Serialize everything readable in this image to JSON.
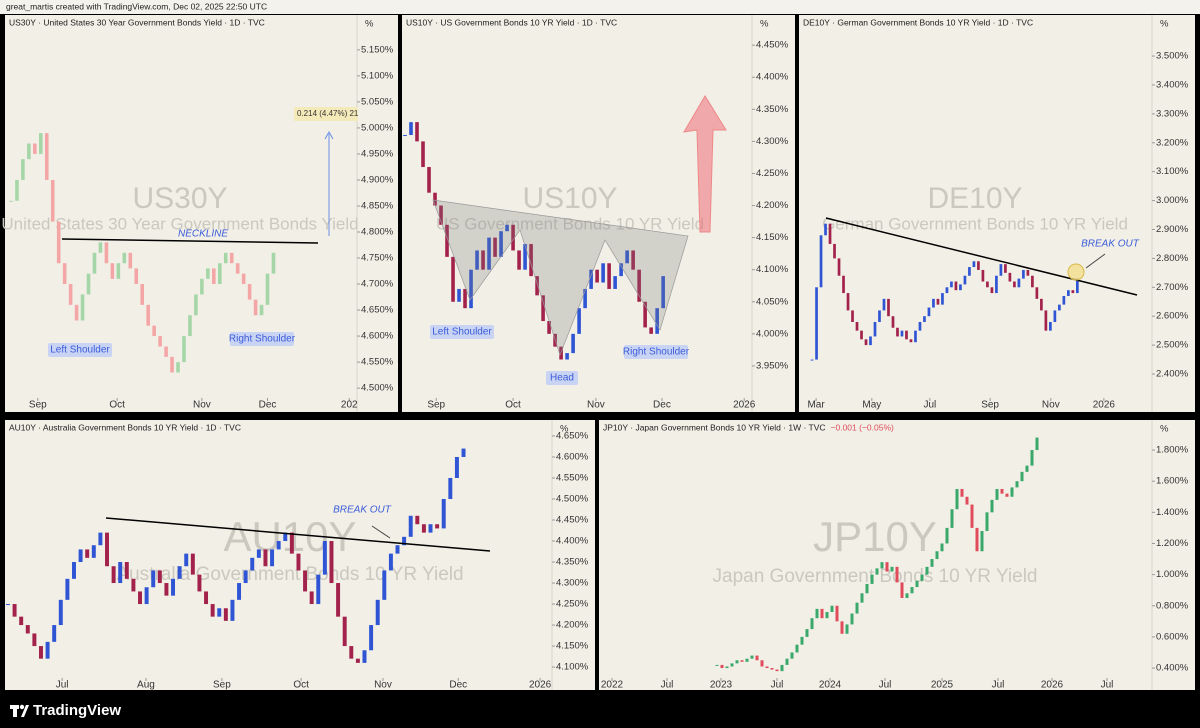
{
  "header": {
    "text": "great_martis created with TradingView.com, Dec 02, 2025 22:50 UTC"
  },
  "footer": {
    "brand": "TradingView"
  },
  "chart_data": [
    {
      "type": "candlestick",
      "title": "US30Y · United States 30 Year Government Bonds Yield · 1D · TVC",
      "symbol": "US30Y",
      "description": "United States 30 Year Government Bonds Yield",
      "unit": "%",
      "up_color": "#a5d6a7",
      "down_color": "#f4a6a6",
      "xlim": [
        -1,
        58
      ],
      "xticks": [
        {
          "value": 4.5,
          "label": "Sep"
        },
        {
          "value": 17.8,
          "label": "Oct"
        },
        {
          "value": 32,
          "label": "Nov"
        },
        {
          "value": 43,
          "label": "Dec"
        },
        {
          "value": 56.7,
          "label": "202"
        }
      ],
      "ylim": [
        4.481,
        5.217
      ],
      "yticks": [
        {
          "value": 5.15,
          "label": "5.150%"
        },
        {
          "value": 5.1,
          "label": "5.100%"
        },
        {
          "value": 5.05,
          "label": "5.050%"
        },
        {
          "value": 5.0,
          "label": "5.000%"
        },
        {
          "value": 4.95,
          "label": "4.950%"
        },
        {
          "value": 4.9,
          "label": "4.900%"
        },
        {
          "value": 4.85,
          "label": "4.850%"
        },
        {
          "value": 4.8,
          "label": "4.800%"
        },
        {
          "value": 4.75,
          "label": "4.750%"
        },
        {
          "value": 4.7,
          "label": "4.700%"
        },
        {
          "value": 4.65,
          "label": "4.650%"
        },
        {
          "value": 4.6,
          "label": "4.600%"
        },
        {
          "value": 4.55,
          "label": "4.550%"
        },
        {
          "value": 4.5,
          "label": "4.500%"
        }
      ],
      "values": [
        4.86,
        4.9,
        4.94,
        4.97,
        4.95,
        4.99,
        4.9,
        4.82,
        4.74,
        4.7,
        4.66,
        4.63,
        4.68,
        4.72,
        4.76,
        4.78,
        4.74,
        4.71,
        4.74,
        4.76,
        4.73,
        4.7,
        4.66,
        4.62,
        4.6,
        4.58,
        4.56,
        4.53,
        4.55,
        4.6,
        4.64,
        4.68,
        4.71,
        4.73,
        4.7,
        4.74,
        4.76,
        4.74,
        4.72,
        4.7,
        4.67,
        4.64,
        4.66,
        4.72,
        4.76
      ],
      "annotations": [
        "NECKLINE",
        "Left Shoulder",
        "Right Shoulder",
        "0.214 (4.47%) 21"
      ]
    },
    {
      "type": "candlestick",
      "title": "US10Y · US Government Bonds 10 YR Yield · 1D · TVC",
      "symbol": "US10Y",
      "description": "US Government Bonds 10 YR Yield",
      "unit": "%",
      "up_color": "#2f55d4",
      "down_color": "#a3224c",
      "xlim": [
        -0.5,
        57.8
      ],
      "xticks": [
        {
          "value": 5.2,
          "label": "Sep"
        },
        {
          "value": 18,
          "label": "Oct"
        },
        {
          "value": 31.8,
          "label": "Nov"
        },
        {
          "value": 42.8,
          "label": "Dec"
        },
        {
          "value": 56.5,
          "label": "2026"
        }
      ],
      "ylim": [
        3.9,
        4.497
      ],
      "yticks": [
        {
          "value": 4.45,
          "label": "4.450%"
        },
        {
          "value": 4.4,
          "label": "4.400%"
        },
        {
          "value": 4.35,
          "label": "4.350%"
        },
        {
          "value": 4.3,
          "label": "4.300%"
        },
        {
          "value": 4.25,
          "label": "4.250%"
        },
        {
          "value": 4.2,
          "label": "4.200%"
        },
        {
          "value": 4.15,
          "label": "4.150%"
        },
        {
          "value": 4.1,
          "label": "4.100%"
        },
        {
          "value": 4.05,
          "label": "4.050%"
        },
        {
          "value": 4.0,
          "label": "4.000%"
        },
        {
          "value": 3.95,
          "label": "3.950%"
        }
      ],
      "values": [
        4.31,
        4.33,
        4.3,
        4.26,
        4.22,
        4.2,
        4.17,
        4.12,
        4.05,
        4.07,
        4.04,
        4.1,
        4.13,
        4.1,
        4.15,
        4.12,
        4.16,
        4.17,
        4.13,
        4.1,
        4.14,
        4.09,
        4.06,
        4.02,
        4.0,
        3.98,
        3.96,
        3.97,
        4.0,
        4.04,
        4.07,
        4.1,
        4.08,
        4.11,
        4.07,
        4.09,
        4.11,
        4.13,
        4.1,
        4.05,
        4.01,
        4.0,
        4.04,
        4.09
      ],
      "annotations": [
        "Left Shoulder",
        "Head",
        "Right Shoulder"
      ]
    },
    {
      "type": "candlestick",
      "title": "DE10Y · German Government Bonds 10 YR Yield · 1D · TVC",
      "symbol": "DE10Y",
      "description": "German Government Bonds 10 YR Yield",
      "unit": "%",
      "up_color": "#2f55d4",
      "down_color": "#a3224c",
      "xlim": [
        -2.9,
        75.6
      ],
      "xticks": [
        {
          "value": 0.9,
          "label": "Mar"
        },
        {
          "value": 13.3,
          "label": "May"
        },
        {
          "value": 26.2,
          "label": "Jul"
        },
        {
          "value": 39.6,
          "label": "Sep"
        },
        {
          "value": 53.1,
          "label": "Nov"
        },
        {
          "value": 64.9,
          "label": "2026"
        }
      ],
      "ylim": [
        2.317,
        3.642
      ],
      "yticks": [
        {
          "value": 3.5,
          "label": "3.500%"
        },
        {
          "value": 3.4,
          "label": "3.400%"
        },
        {
          "value": 3.3,
          "label": "3.300%"
        },
        {
          "value": 3.2,
          "label": "3.200%"
        },
        {
          "value": 3.1,
          "label": "3.100%"
        },
        {
          "value": 3.0,
          "label": "3.000%"
        },
        {
          "value": 2.9,
          "label": "2.900%"
        },
        {
          "value": 2.8,
          "label": "2.800%"
        },
        {
          "value": 2.7,
          "label": "2.700%"
        },
        {
          "value": 2.6,
          "label": "2.600%"
        },
        {
          "value": 2.5,
          "label": "2.500%"
        },
        {
          "value": 2.4,
          "label": "2.400%"
        }
      ],
      "values": [
        2.45,
        2.7,
        2.88,
        2.92,
        2.85,
        2.8,
        2.74,
        2.68,
        2.62,
        2.58,
        2.55,
        2.52,
        2.5,
        2.53,
        2.58,
        2.62,
        2.66,
        2.6,
        2.56,
        2.53,
        2.55,
        2.52,
        2.51,
        2.55,
        2.58,
        2.6,
        2.63,
        2.66,
        2.64,
        2.68,
        2.7,
        2.72,
        2.69,
        2.71,
        2.74,
        2.77,
        2.79,
        2.76,
        2.72,
        2.7,
        2.68,
        2.74,
        2.78,
        2.75,
        2.72,
        2.7,
        2.73,
        2.76,
        2.74,
        2.7,
        2.66,
        2.62,
        2.55,
        2.58,
        2.62,
        2.64,
        2.67,
        2.69,
        2.68,
        2.73
      ],
      "annotations": [
        "BREAK OUT"
      ]
    },
    {
      "type": "candlestick",
      "title": "AU10Y · Australia Government Bonds 10 YR Yield · 1D · TVC",
      "symbol": "AU10Y",
      "description": "Australia Government Bonds 10 YR Yield",
      "unit": "%",
      "up_color": "#2f55d4",
      "down_color": "#a3224c",
      "xlim": [
        -0.45,
        82.4
      ],
      "xticks": [
        {
          "value": 8.2,
          "label": "Jul"
        },
        {
          "value": 20.9,
          "label": "Aug"
        },
        {
          "value": 32.4,
          "label": "Sep"
        },
        {
          "value": 44.4,
          "label": "Oct"
        },
        {
          "value": 56.8,
          "label": "Nov"
        },
        {
          "value": 68.2,
          "label": "Dec"
        },
        {
          "value": 80.6,
          "label": "2026"
        }
      ],
      "ylim": [
        4.074,
        4.688
      ],
      "yticks": [
        {
          "value": 4.65,
          "label": "4.650%"
        },
        {
          "value": 4.6,
          "label": "4.600%"
        },
        {
          "value": 4.55,
          "label": "4.550%"
        },
        {
          "value": 4.5,
          "label": "4.500%"
        },
        {
          "value": 4.45,
          "label": "4.450%"
        },
        {
          "value": 4.4,
          "label": "4.400%"
        },
        {
          "value": 4.35,
          "label": "4.350%"
        },
        {
          "value": 4.3,
          "label": "4.300%"
        },
        {
          "value": 4.25,
          "label": "4.250%"
        },
        {
          "value": 4.2,
          "label": "4.200%"
        },
        {
          "value": 4.15,
          "label": "4.150%"
        },
        {
          "value": 4.1,
          "label": "4.100%"
        }
      ],
      "values": [
        4.25,
        4.22,
        4.2,
        4.18,
        4.15,
        4.12,
        4.16,
        4.2,
        4.26,
        4.31,
        4.35,
        4.38,
        4.36,
        4.39,
        4.42,
        4.34,
        4.3,
        4.35,
        4.31,
        4.28,
        4.25,
        4.29,
        4.33,
        4.3,
        4.27,
        4.31,
        4.34,
        4.37,
        4.32,
        4.28,
        4.25,
        4.22,
        4.24,
        4.21,
        4.26,
        4.3,
        4.33,
        4.36,
        4.38,
        4.34,
        4.38,
        4.4,
        4.42,
        4.37,
        4.33,
        4.28,
        4.25,
        4.32,
        4.4,
        4.3,
        4.22,
        4.15,
        4.12,
        4.11,
        4.14,
        4.2,
        4.26,
        4.33,
        4.37,
        4.39,
        4.41,
        4.46,
        4.44,
        4.42,
        4.44,
        4.43,
        4.5,
        4.55,
        4.6,
        4.62
      ],
      "annotations": [
        "BREAK OUT"
      ]
    },
    {
      "type": "candlestick",
      "title": "JP10Y · Japan Government Bonds 10 YR Yield · 1W · TVC",
      "change": "−0.001 (−0.05%)",
      "symbol": "JP10Y",
      "description": "Japan Government Bonds 10 YR Yield",
      "unit": "%",
      "up_color": "#3aa86b",
      "down_color": "#e04c5a",
      "xlim": [
        -23.6,
        87
      ],
      "xticks": [
        {
          "value": -21,
          "label": "2022"
        },
        {
          "value": -10,
          "label": "Jul"
        },
        {
          "value": 0.8,
          "label": "2023"
        },
        {
          "value": 12,
          "label": "Jul"
        },
        {
          "value": 22.6,
          "label": "2024"
        },
        {
          "value": 33.6,
          "label": "Jul"
        },
        {
          "value": 45,
          "label": "2025"
        },
        {
          "value": 56.2,
          "label": "Jul"
        },
        {
          "value": 67,
          "label": "2026"
        },
        {
          "value": 78,
          "label": "Jul"
        }
      ],
      "ylim": [
        0.336,
        1.993
      ],
      "yticks": [
        {
          "value": 1.8,
          "label": "1.800%"
        },
        {
          "value": 1.6,
          "label": "1.600%"
        },
        {
          "value": 1.4,
          "label": "1.400%"
        },
        {
          "value": 1.2,
          "label": "1.200%"
        },
        {
          "value": 1.0,
          "label": "1.000%"
        },
        {
          "value": 0.8,
          "label": "0.800%"
        },
        {
          "value": 0.6,
          "label": "0.600%"
        },
        {
          "value": 0.4,
          "label": "0.400%"
        }
      ],
      "values": [
        0.42,
        0.4,
        0.41,
        0.43,
        0.45,
        0.44,
        0.46,
        0.48,
        0.45,
        0.41,
        0.4,
        0.39,
        0.38,
        0.42,
        0.46,
        0.5,
        0.55,
        0.6,
        0.65,
        0.72,
        0.78,
        0.72,
        0.76,
        0.8,
        0.7,
        0.62,
        0.68,
        0.75,
        0.82,
        0.88,
        0.94,
        1.0,
        1.04,
        1.08,
        1.02,
        1.05,
        0.95,
        0.85,
        0.88,
        0.92,
        0.96,
        1.0,
        1.05,
        1.1,
        1.15,
        1.2,
        1.3,
        1.42,
        1.55,
        1.5,
        1.45,
        1.3,
        1.15,
        1.28,
        1.4,
        1.48,
        1.55,
        1.52,
        1.5,
        1.56,
        1.6,
        1.66,
        1.7,
        1.8,
        1.88
      ],
      "annotations": []
    }
  ]
}
